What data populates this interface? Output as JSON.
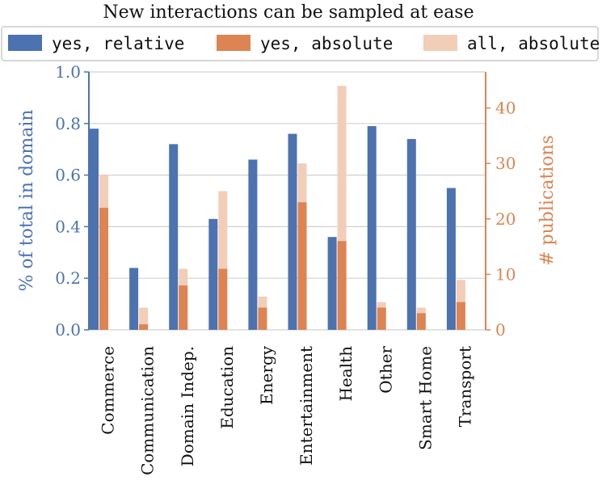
{
  "chart_data": {
    "type": "bar",
    "title": "New interactions can be sampled at ease",
    "categories": [
      "Commerce",
      "Communication",
      "Domain Indep.",
      "Education",
      "Energy",
      "Entertainment",
      "Health",
      "Other",
      "Smart Home",
      "Transport"
    ],
    "series": [
      {
        "name": "yes, relative",
        "axis": "left",
        "color": "#4c72b0",
        "values": [
          0.78,
          0.24,
          0.72,
          0.43,
          0.66,
          0.76,
          0.36,
          0.79,
          0.74,
          0.55
        ]
      },
      {
        "name": "yes, absolute",
        "axis": "right",
        "color": "#dd8452",
        "values": [
          22,
          1,
          8,
          11,
          4,
          23,
          16,
          4,
          3,
          5
        ]
      },
      {
        "name": "all, absolute",
        "axis": "right",
        "color": "#f2cdb8",
        "values": [
          28,
          4,
          11,
          25,
          6,
          30,
          44,
          5,
          4,
          9
        ]
      }
    ],
    "ylabel": "% of total in domain",
    "ylabel_right": "# publications",
    "ylim": [
      0,
      1.0
    ],
    "ylim_right": [
      0,
      46.5
    ],
    "yticks": [
      "0.0",
      "0.2",
      "0.4",
      "0.6",
      "0.8",
      "1.0"
    ],
    "yticks_right": [
      "0",
      "10",
      "20",
      "30",
      "40"
    ],
    "grid": true,
    "legend_position": "top"
  }
}
